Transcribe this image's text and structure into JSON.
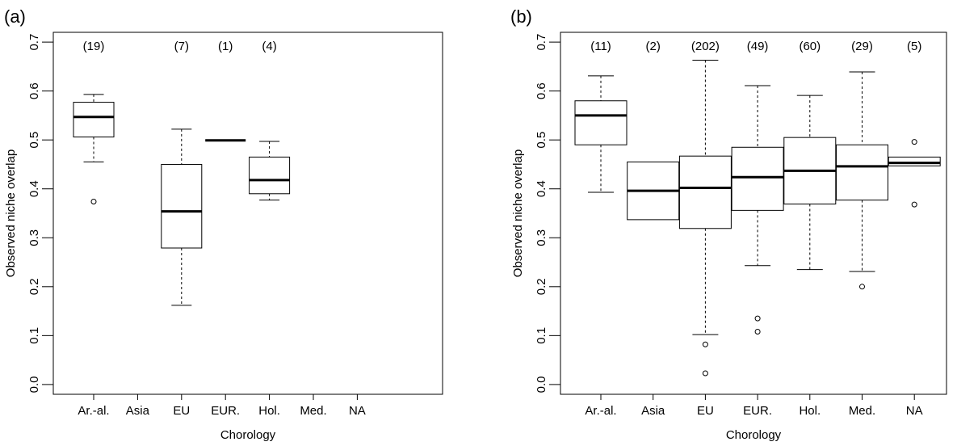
{
  "chart_data": [
    {
      "panel_label": "(a)",
      "type": "box",
      "xlabel": "Chorology",
      "ylabel": "Observed niche overlap",
      "ylim": [
        -0.02,
        0.72
      ],
      "yticks": [
        "0.0",
        "0.1",
        "0.2",
        "0.3",
        "0.4",
        "0.5",
        "0.6",
        "0.7"
      ],
      "categories": [
        "Ar.-al.",
        "Asia",
        "EU",
        "EUR.",
        "Hol.",
        "Med.",
        "NA"
      ],
      "counts": [
        "(19)",
        "",
        "(7)",
        "(1)",
        "(4)",
        "",
        ""
      ],
      "boxes": [
        {
          "category": "Ar.-al.",
          "whisker_low": 0.455,
          "q1": 0.506,
          "median": 0.547,
          "q3": 0.577,
          "whisker_high": 0.593,
          "outliers": [
            0.374
          ]
        },
        null,
        {
          "category": "EU",
          "whisker_low": 0.162,
          "q1": 0.279,
          "median": 0.354,
          "q3": 0.45,
          "whisker_high": 0.522,
          "outliers": []
        },
        {
          "category": "EUR.",
          "whisker_low": 0.499,
          "q1": 0.499,
          "median": 0.499,
          "q3": 0.499,
          "whisker_high": 0.499,
          "outliers": []
        },
        {
          "category": "Hol.",
          "whisker_low": 0.377,
          "q1": 0.39,
          "median": 0.418,
          "q3": 0.465,
          "whisker_high": 0.497,
          "outliers": []
        },
        null,
        null
      ]
    },
    {
      "panel_label": "(b)",
      "type": "box",
      "xlabel": "Chorology",
      "ylabel": "Observed niche overlap",
      "ylim": [
        -0.02,
        0.72
      ],
      "yticks": [
        "0.0",
        "0.1",
        "0.2",
        "0.3",
        "0.4",
        "0.5",
        "0.6",
        "0.7"
      ],
      "categories": [
        "Ar.-al.",
        "Asia",
        "EU",
        "EUR.",
        "Hol.",
        "Med.",
        "NA"
      ],
      "counts": [
        "(11)",
        "(2)",
        "(202)",
        "(49)",
        "(60)",
        "(29)",
        "(5)"
      ],
      "boxes": [
        {
          "category": "Ar.-al.",
          "whisker_low": 0.393,
          "q1": 0.49,
          "median": 0.55,
          "q3": 0.58,
          "whisker_high": 0.631,
          "outliers": []
        },
        {
          "category": "Asia",
          "whisker_low": 0.337,
          "q1": 0.337,
          "median": 0.396,
          "q3": 0.455,
          "whisker_high": 0.455,
          "outliers": []
        },
        {
          "category": "EU",
          "whisker_low": 0.102,
          "q1": 0.319,
          "median": 0.402,
          "q3": 0.467,
          "whisker_high": 0.663,
          "outliers": [
            0.082,
            0.023
          ]
        },
        {
          "category": "EUR.",
          "whisker_low": 0.243,
          "q1": 0.356,
          "median": 0.424,
          "q3": 0.485,
          "whisker_high": 0.611,
          "outliers": [
            0.135,
            0.108
          ]
        },
        {
          "category": "Hol.",
          "whisker_low": 0.235,
          "q1": 0.369,
          "median": 0.437,
          "q3": 0.505,
          "whisker_high": 0.591,
          "outliers": []
        },
        {
          "category": "Med.",
          "whisker_low": 0.231,
          "q1": 0.377,
          "median": 0.446,
          "q3": 0.49,
          "whisker_high": 0.639,
          "outliers": [
            0.2
          ]
        },
        {
          "category": "NA",
          "whisker_low": 0.447,
          "q1": 0.447,
          "median": 0.453,
          "q3": 0.465,
          "whisker_high": 0.465,
          "outliers": [
            0.496,
            0.368
          ]
        }
      ]
    }
  ]
}
